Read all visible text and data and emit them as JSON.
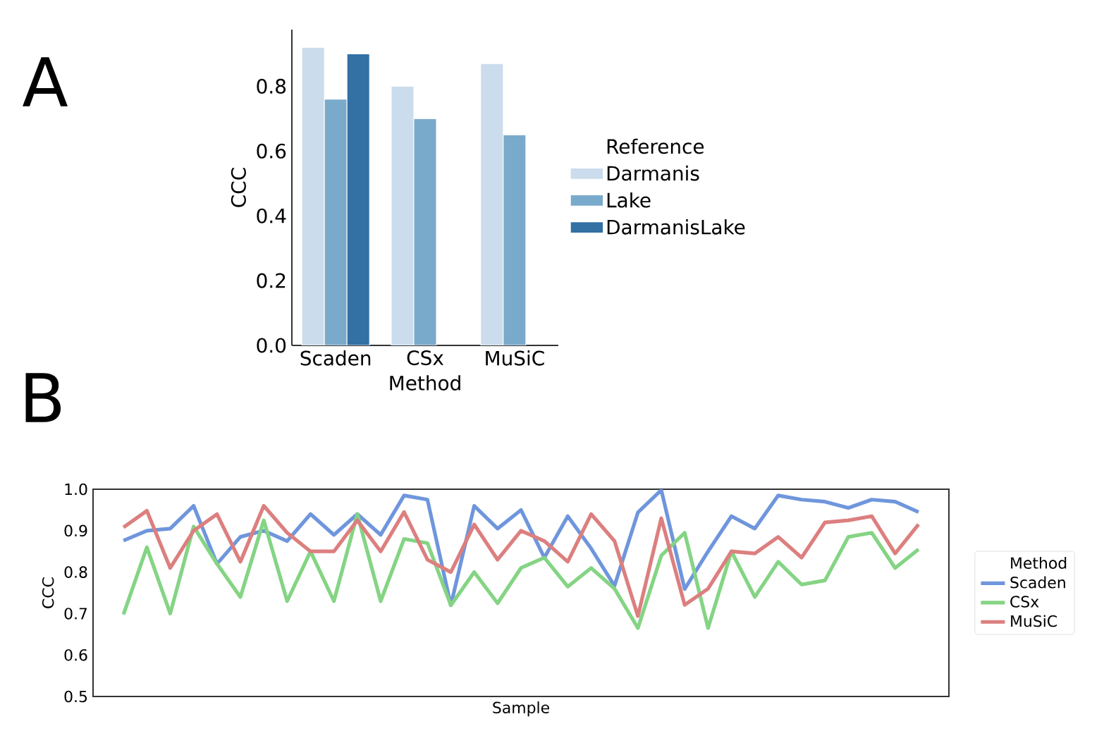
{
  "chart_data": [
    {
      "type": "bar",
      "annotations": [
        "A"
      ],
      "xlabel": "Method",
      "ylabel": "CCC",
      "legend_title": "Reference",
      "legend": "right",
      "categories": [
        "Scaden",
        "CSx",
        "MuSiC"
      ],
      "series": [
        {
          "name": "Darmanis",
          "color": "#cbdcec",
          "values": [
            0.92,
            0.8,
            0.87
          ]
        },
        {
          "name": "Lake",
          "color": "#7aaacb",
          "values": [
            0.76,
            0.7,
            0.65
          ]
        },
        {
          "name": "DarmanisLake",
          "color": "#3370a4",
          "values": [
            0.9,
            null,
            null
          ]
        }
      ],
      "ylim": [
        0,
        0.975
      ],
      "yticks": [
        {
          "value": 0,
          "label": "0.0"
        },
        {
          "value": 0.2,
          "label": "0.2"
        },
        {
          "value": 0.4,
          "label": "0.4"
        },
        {
          "value": 0.6,
          "label": "0.6"
        },
        {
          "value": 0.8,
          "label": "0.8"
        }
      ]
    },
    {
      "type": "line",
      "annotations": [
        "B"
      ],
      "xlabel": "Sample",
      "ylabel": "CCC",
      "legend_title": "Method",
      "legend": "right",
      "marker": "none",
      "line_style": "solid",
      "tick_labels": "y",
      "categories": [
        null,
        null,
        null,
        null,
        null,
        null,
        null,
        null,
        null,
        null,
        null,
        null,
        null,
        null,
        null,
        null,
        null,
        null,
        null,
        null,
        null,
        null,
        null,
        null,
        null,
        null,
        null,
        null,
        null,
        null,
        null,
        null,
        null,
        null,
        null
      ],
      "series": [
        {
          "name": "Scaden",
          "color": "#6f96dc",
          "values": [
            0.876,
            0.9,
            0.905,
            0.96,
            0.82,
            0.885,
            0.9,
            0.875,
            0.94,
            0.89,
            0.94,
            0.89,
            0.985,
            0.975,
            0.72,
            0.96,
            0.905,
            0.95,
            0.835,
            0.935,
            0.857,
            0.767,
            0.944,
            0.998,
            0.759,
            0.85,
            0.935,
            0.905,
            0.985,
            0.975,
            0.97,
            0.955,
            0.975,
            0.97,
            0.945
          ]
        },
        {
          "name": "CSx",
          "color": "#84d484",
          "values": [
            0.698,
            0.86,
            0.7,
            0.91,
            0.82,
            0.74,
            0.925,
            0.73,
            0.85,
            0.73,
            0.94,
            0.73,
            0.88,
            0.87,
            0.72,
            0.8,
            0.725,
            0.81,
            0.835,
            0.765,
            0.81,
            0.76,
            0.665,
            0.84,
            0.895,
            0.665,
            0.85,
            0.74,
            0.825,
            0.77,
            0.78,
            0.885,
            0.895,
            0.81,
            0.855
          ]
        },
        {
          "name": "MuSiC",
          "color": "#dc7f7f",
          "values": [
            0.908,
            0.948,
            0.81,
            0.9,
            0.94,
            0.825,
            0.96,
            0.895,
            0.85,
            0.85,
            0.925,
            0.85,
            0.945,
            0.83,
            0.8,
            0.915,
            0.83,
            0.9,
            0.875,
            0.825,
            0.94,
            0.875,
            0.694,
            0.93,
            0.721,
            0.76,
            0.85,
            0.845,
            0.885,
            0.835,
            0.92,
            0.925,
            0.935,
            0.845,
            0.915
          ]
        }
      ],
      "ylim": [
        0.5,
        1.0
      ],
      "yticks": [
        {
          "value": 0.5,
          "label": "0.5"
        },
        {
          "value": 0.6,
          "label": "0.6"
        },
        {
          "value": 0.7,
          "label": "0.7"
        },
        {
          "value": 0.8,
          "label": "0.8"
        },
        {
          "value": 0.9,
          "label": "0.9"
        },
        {
          "value": 1.0,
          "label": "1.0"
        }
      ]
    }
  ]
}
